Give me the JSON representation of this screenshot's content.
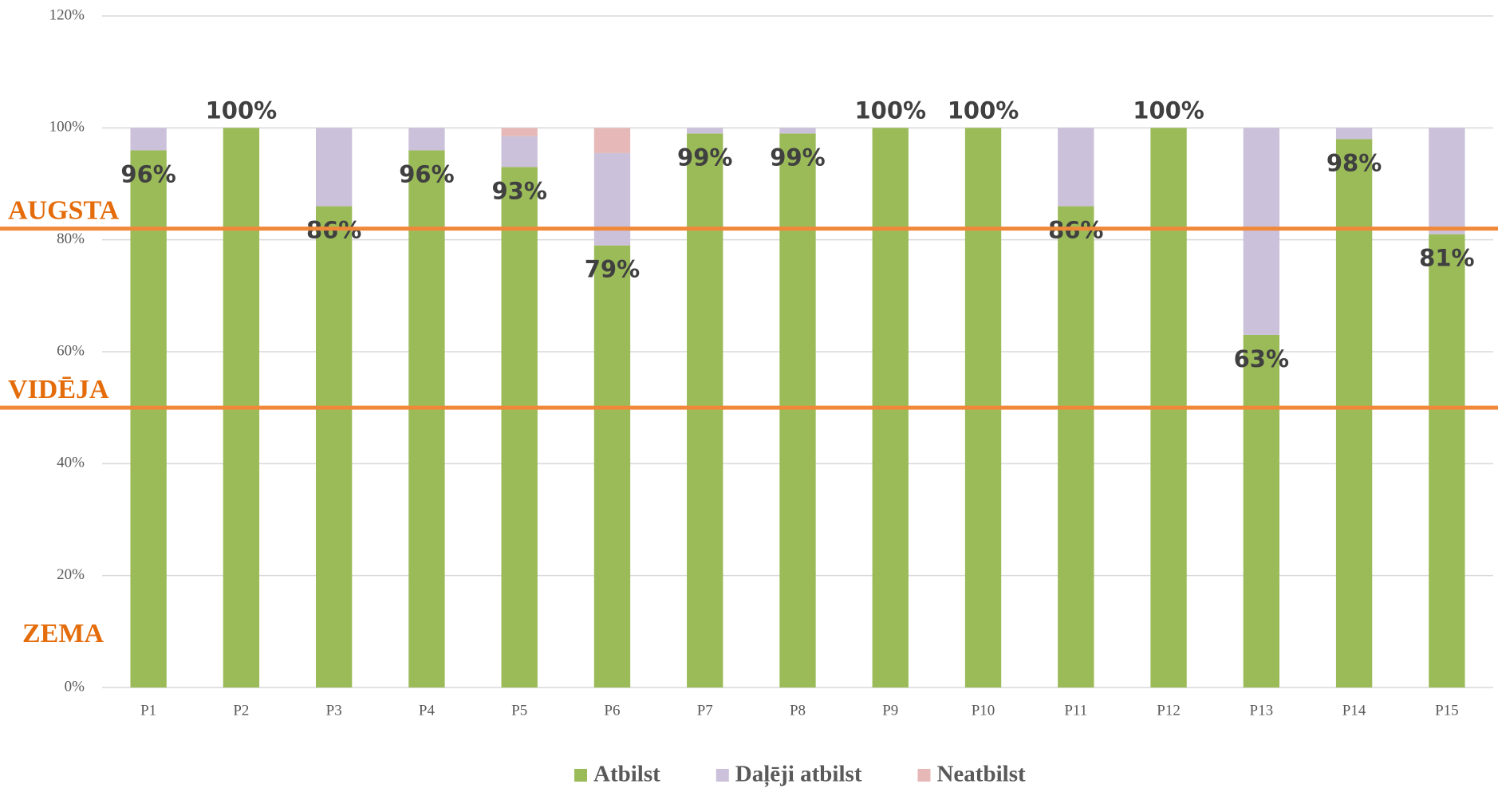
{
  "chart_data": {
    "type": "stacked_bar",
    "categories": [
      "P1",
      "P2",
      "P3",
      "P4",
      "P5",
      "P6",
      "P7",
      "P8",
      "P9",
      "P10",
      "P11",
      "P12",
      "P13",
      "P14",
      "P15"
    ],
    "series": [
      {
        "name": "Atbilst",
        "color": "#9bbb59",
        "values": [
          96,
          100,
          86,
          96,
          93,
          79,
          99,
          99,
          100,
          100,
          86,
          100,
          63,
          98,
          81
        ],
        "value_labels": [
          "96%",
          "100%",
          "86%",
          "96%",
          "93%",
          "79%",
          "99%",
          "99%",
          "100%",
          "100%",
          "86%",
          "100%",
          "63%",
          "98%",
          "81%"
        ]
      },
      {
        "name": "Daļēji atbilst",
        "color": "#ccc1da",
        "values": [
          4,
          0,
          14,
          4,
          5.5,
          16.5,
          1,
          1,
          0,
          0,
          14,
          0,
          37,
          2,
          19
        ]
      },
      {
        "name": "Neatbilst",
        "color": "#e6b9b8",
        "values": [
          0,
          0,
          0,
          0,
          1.5,
          4.5,
          0,
          0,
          0,
          0,
          0,
          0,
          0,
          0,
          0
        ]
      }
    ],
    "ylim": [
      0,
      120
    ],
    "yticks": [
      {
        "value": 0,
        "label": "0%"
      },
      {
        "value": 20,
        "label": "20%"
      },
      {
        "value": 40,
        "label": "40%"
      },
      {
        "value": 60,
        "label": "60%"
      },
      {
        "value": 80,
        "label": "80%"
      },
      {
        "value": 100,
        "label": "100%"
      },
      {
        "value": 120,
        "label": "120%"
      }
    ],
    "grid": true,
    "thresholds": [
      {
        "label": "AUGSTA",
        "value": 82,
        "color": "#f0883a"
      },
      {
        "label": "VIDĒJA",
        "value": 50,
        "color": "#f0883a"
      }
    ],
    "annotations": [
      "ZEMA"
    ],
    "legend": "bottom"
  }
}
